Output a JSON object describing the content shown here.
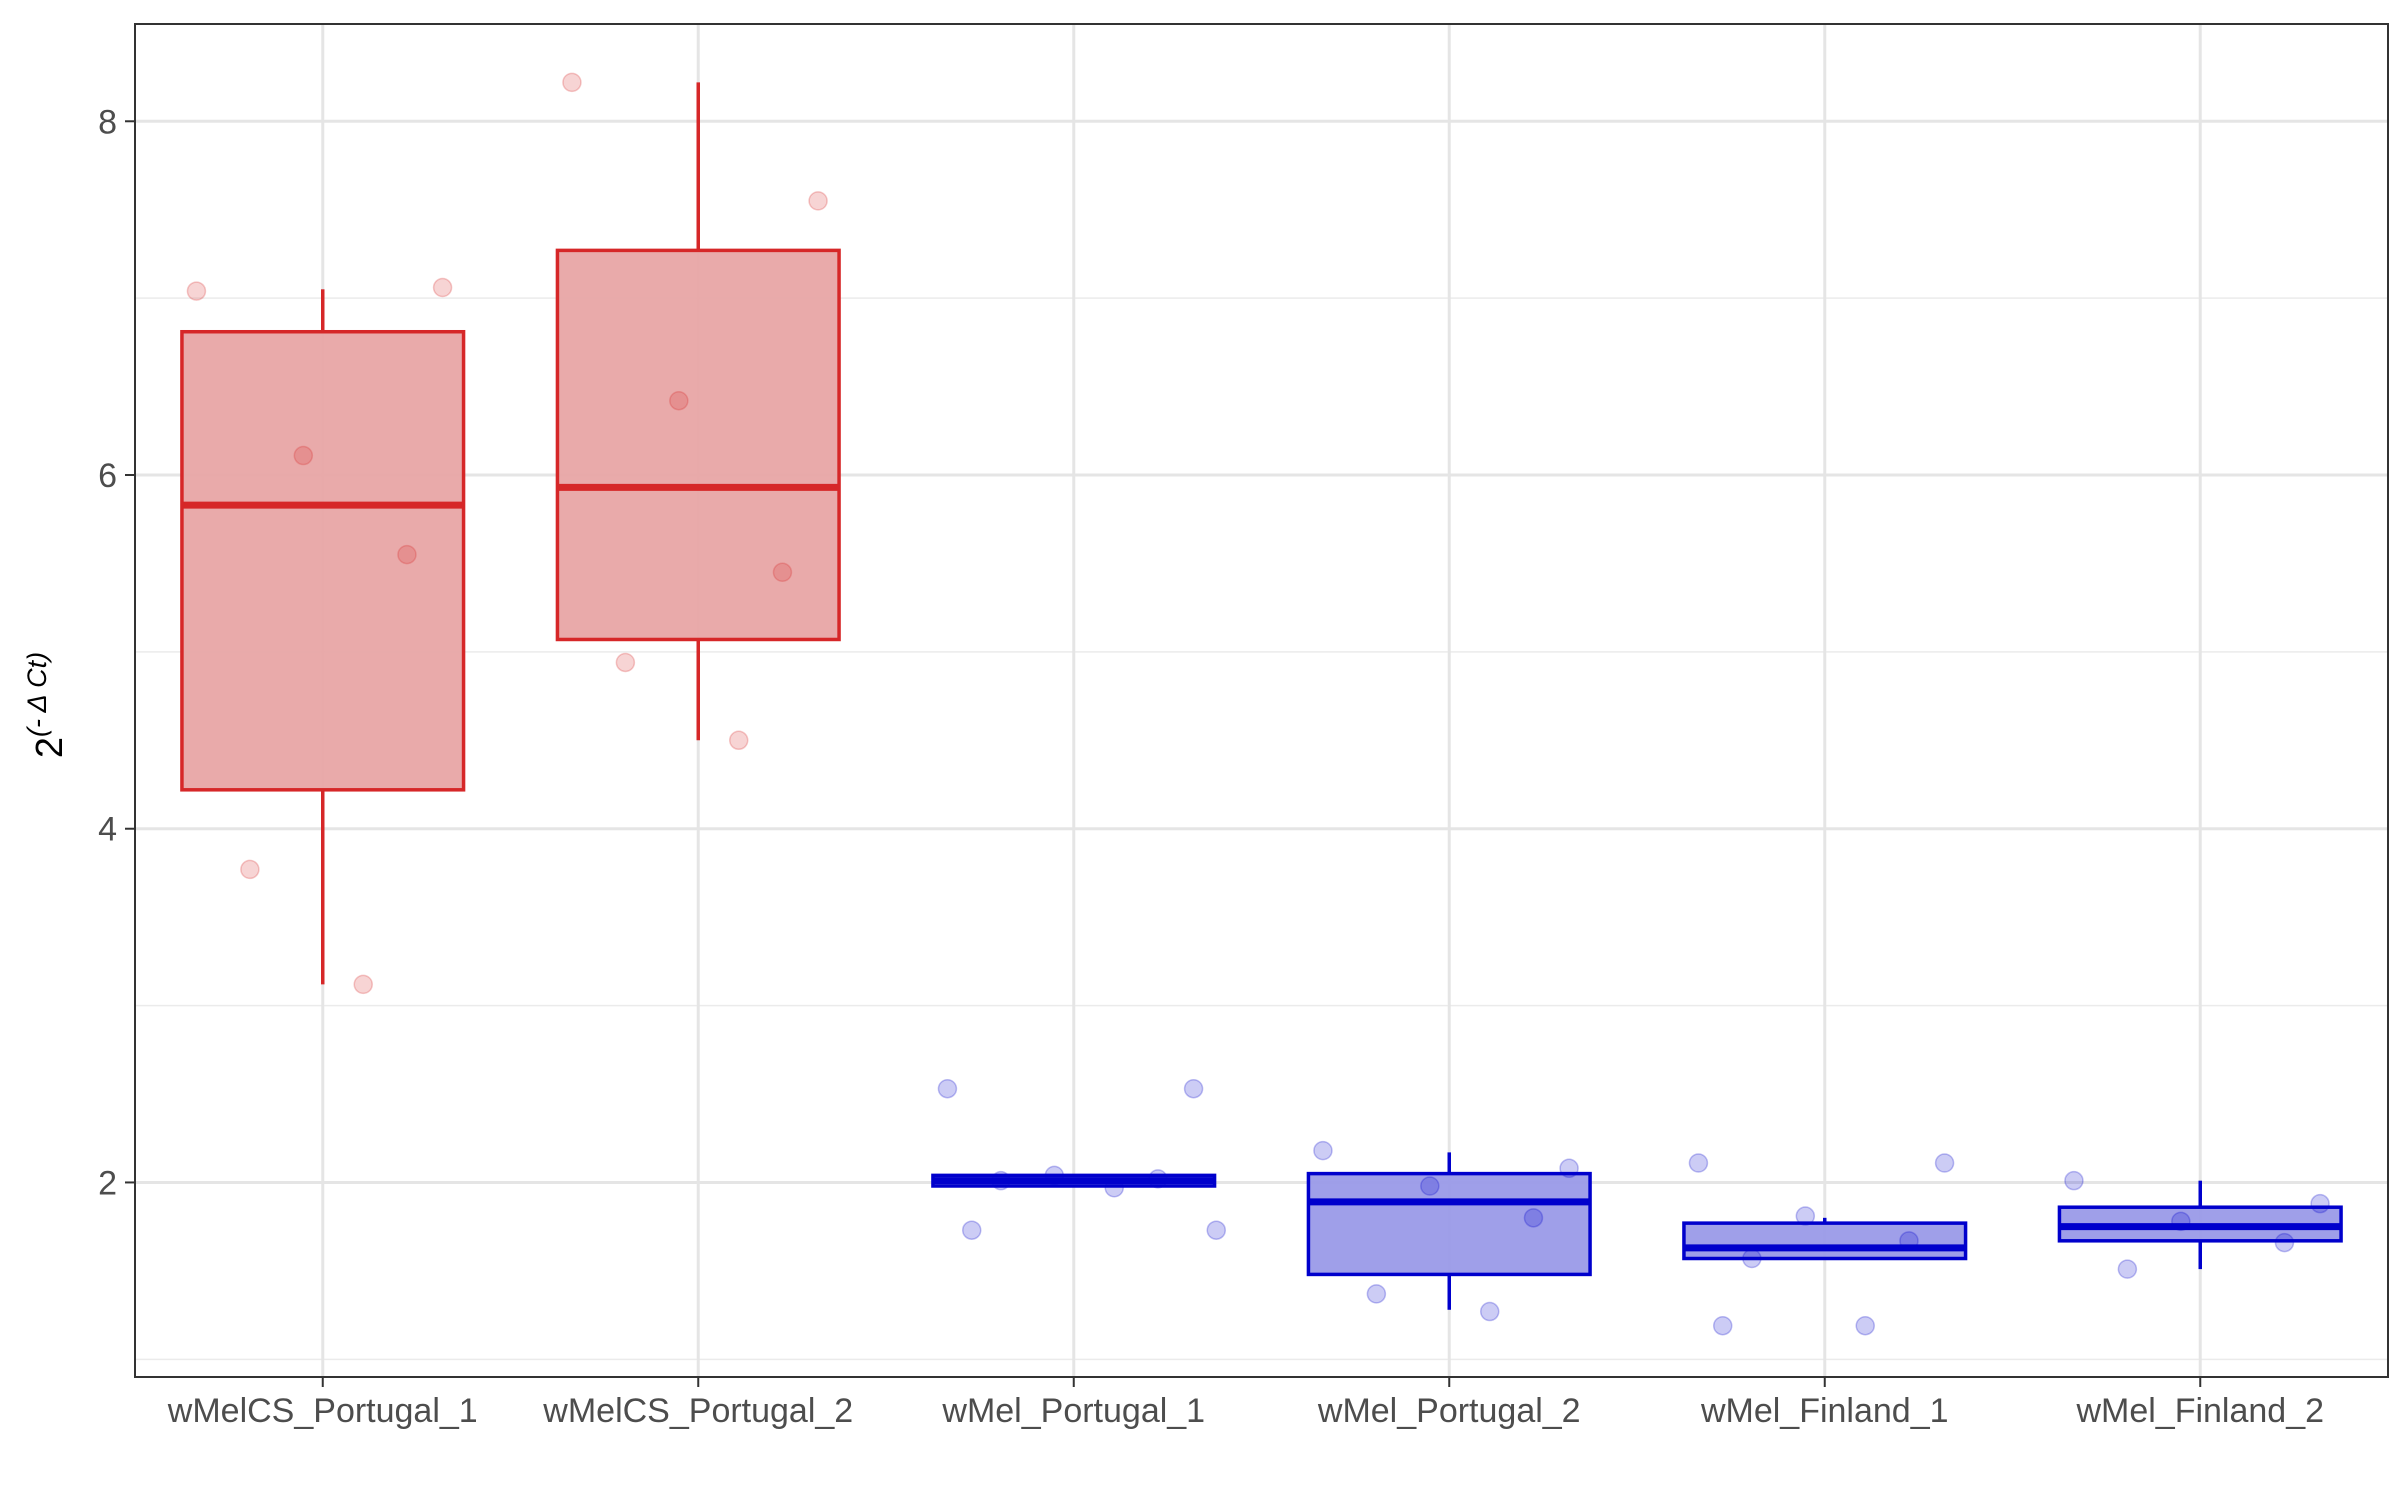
{
  "chart_data": {
    "type": "box",
    "title": "",
    "xlabel": "",
    "ylabel": {
      "base": "2",
      "exponent": "(- Δ Ct)"
    },
    "categories": [
      "wMelCS_Portugal_1",
      "wMelCS_Portugal_2",
      "wMel_Portugal_1",
      "wMel_Portugal_2",
      "wMel_Finland_1",
      "wMel_Finland_2"
    ],
    "ylim": [
      0.9,
      8.55
    ],
    "yticks": [
      2,
      4,
      6,
      8
    ],
    "grid": true,
    "legend": "none",
    "colors": {
      "wMelCS": "#d62728",
      "wMel": "#0000cc",
      "wMelCS_fill": "#e8a5a5",
      "wMel_fill": "#9a9ae8"
    },
    "boxes": [
      {
        "category": "wMelCS_Portugal_1",
        "group": "wMelCS",
        "lower_whisker": 3.12,
        "q1": 4.22,
        "median": 5.83,
        "q3": 6.81,
        "upper_whisker": 7.05,
        "points": [
          7.04,
          7.06,
          6.11,
          5.55,
          3.77,
          3.12
        ]
      },
      {
        "category": "wMelCS_Portugal_2",
        "group": "wMelCS",
        "lower_whisker": 4.5,
        "q1": 5.07,
        "median": 5.93,
        "q3": 7.27,
        "upper_whisker": 8.22,
        "points": [
          8.22,
          7.55,
          6.42,
          5.45,
          4.94,
          4.5
        ]
      },
      {
        "category": "wMel_Portugal_1",
        "group": "wMel",
        "lower_whisker": 1.98,
        "q1": 1.98,
        "median": 2.01,
        "q3": 2.04,
        "upper_whisker": 2.04,
        "points": [
          2.53,
          2.53,
          2.04,
          2.02,
          2.01,
          1.97,
          1.73,
          1.73
        ]
      },
      {
        "category": "wMel_Portugal_2",
        "group": "wMel",
        "lower_whisker": 1.28,
        "q1": 1.48,
        "median": 1.89,
        "q3": 2.05,
        "upper_whisker": 2.17,
        "points": [
          2.18,
          2.08,
          1.98,
          1.8,
          1.37,
          1.27
        ]
      },
      {
        "category": "wMel_Finland_1",
        "group": "wMel",
        "lower_whisker": 1.57,
        "q1": 1.57,
        "median": 1.63,
        "q3": 1.77,
        "upper_whisker": 1.8,
        "points": [
          2.11,
          2.11,
          1.81,
          1.67,
          1.57,
          1.19,
          1.19
        ]
      },
      {
        "category": "wMel_Finland_2",
        "group": "wMel",
        "lower_whisker": 1.51,
        "q1": 1.67,
        "median": 1.75,
        "q3": 1.86,
        "upper_whisker": 2.01,
        "points": [
          2.01,
          1.88,
          1.78,
          1.66,
          1.51
        ]
      }
    ]
  }
}
